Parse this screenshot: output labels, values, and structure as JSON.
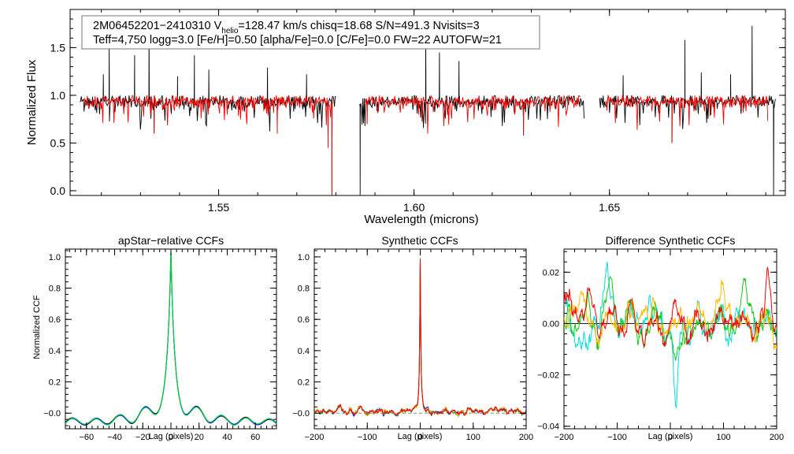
{
  "chart_data": [
    {
      "id": "spectrum",
      "type": "line",
      "xlabel": "Wavelength (microns)",
      "ylabel": "Normalized Flux",
      "xlim": [
        1.512,
        1.695
      ],
      "ylim": [
        -0.05,
        1.9
      ],
      "xticks": [
        "1.55",
        "1.60",
        "1.65"
      ],
      "xtick_values": [
        1.55,
        1.6,
        1.65
      ],
      "yticks": [
        "0.0",
        "0.5",
        "1.0",
        "1.5"
      ],
      "ytick_values": [
        0.0,
        0.5,
        1.0,
        1.5
      ],
      "annotation": {
        "line1_pre": "2M06452201−2410310  V",
        "line1_sub": "helio",
        "line1_post": "=128.47 km/s  chisq=18.68  S/N=491.3  Nvisits=3",
        "line2": "Teff=4,750 logg=3.0 [Fe/H]=0.50 [alpha/Fe]=0.0 [C/Fe]=0.0 FW=22 AUTOFW=21"
      },
      "chips": [
        [
          1.5145,
          1.58
        ],
        [
          1.586,
          1.6435
        ],
        [
          1.6475,
          1.6925
        ]
      ],
      "model_chips": [
        [
          1.5155,
          1.579
        ],
        [
          1.5875,
          1.6425
        ],
        [
          1.649,
          1.6905
        ]
      ],
      "emission_lines": [
        [
          1.5205,
          1.22
        ],
        [
          1.522,
          1.52
        ],
        [
          1.5285,
          1.42
        ],
        [
          1.5322,
          1.73
        ],
        [
          1.5395,
          1.2
        ],
        [
          1.5438,
          1.42
        ],
        [
          1.5475,
          1.27
        ],
        [
          1.5625,
          1.29
        ],
        [
          1.5725,
          1.22
        ],
        [
          1.603,
          1.63
        ],
        [
          1.6065,
          1.45
        ],
        [
          1.6115,
          1.36
        ],
        [
          1.6535,
          1.21
        ],
        [
          1.6693,
          1.58
        ],
        [
          1.6735,
          1.24
        ],
        [
          1.681,
          1.22
        ],
        [
          1.6865,
          1.73
        ]
      ],
      "absorption_lines": [
        [
          1.578,
          0.45
        ],
        [
          1.579,
          -0.05
        ],
        [
          1.5862,
          -0.05
        ],
        [
          1.588,
          0.7
        ],
        [
          1.628,
          0.58
        ],
        [
          1.5335,
          0.6
        ],
        [
          1.565,
          0.6
        ],
        [
          1.666,
          0.5
        ],
        [
          1.692,
          -0.05
        ]
      ],
      "series": [
        {
          "name": "observed",
          "color": "#000000"
        },
        {
          "name": "model",
          "color": "#ff0000"
        }
      ]
    },
    {
      "id": "apstar-ccf",
      "type": "line",
      "title": "apStar−relative CCFs",
      "xlabel": "Lag (pixels)",
      "ylabel": "Normalized CCF",
      "xlim": [
        -75,
        75
      ],
      "ylim": [
        -0.1,
        1.05
      ],
      "xticks": [
        "−60",
        "−40",
        "−20",
        "0",
        "20",
        "40",
        "60"
      ],
      "xtick_values": [
        -60,
        -40,
        -20,
        0,
        20,
        40,
        60
      ],
      "yticks": [
        "−0.0",
        "0.2",
        "0.4",
        "0.6",
        "0.8",
        "1.0"
      ],
      "ytick_values": [
        0.0,
        0.2,
        0.4,
        0.6,
        0.8,
        1.0
      ],
      "series": [
        {
          "name": "ccf-black",
          "color": "#000000"
        },
        {
          "name": "ccf-blue",
          "color": "#0000ff"
        },
        {
          "name": "ccf-green",
          "color": "#00cc44"
        }
      ]
    },
    {
      "id": "synthetic-ccf",
      "type": "line",
      "title": "Synthetic CCFs",
      "xlabel": "Lag (pixels)",
      "xlim": [
        -200,
        200
      ],
      "ylim": [
        -0.1,
        1.05
      ],
      "xticks": [
        "−200",
        "−100",
        "0",
        "100",
        "200"
      ],
      "xtick_values": [
        -200,
        -100,
        0,
        100,
        200
      ],
      "yticks": [
        "−0.0",
        "0.2",
        "0.4",
        "0.6",
        "0.8",
        "1.0"
      ],
      "ytick_values": [
        0.0,
        0.2,
        0.4,
        0.6,
        0.8,
        1.0
      ],
      "series": [
        {
          "name": "syn-blue",
          "color": "#1010e0"
        },
        {
          "name": "syn-green",
          "color": "#22aa22"
        },
        {
          "name": "syn-orange",
          "color": "#ff9900"
        },
        {
          "name": "syn-red",
          "color": "#ee0000"
        }
      ]
    },
    {
      "id": "difference-ccf",
      "type": "line",
      "title": "Difference Synthetic CCFs",
      "xlabel": "Lag (pixels)",
      "xlim": [
        -200,
        200
      ],
      "ylim": [
        -0.041,
        0.029
      ],
      "xticks": [
        "−200",
        "−100",
        "0",
        "100",
        "200"
      ],
      "xtick_values": [
        -200,
        -100,
        0,
        100,
        200
      ],
      "yticks": [
        "−0.04",
        "−0.02",
        "0.00",
        "0.02"
      ],
      "ytick_values": [
        -0.04,
        -0.02,
        0.0,
        0.02
      ],
      "series": [
        {
          "name": "diff-cyan",
          "color": "#00dddd"
        },
        {
          "name": "diff-green",
          "color": "#11cc11"
        },
        {
          "name": "diff-yellow",
          "color": "#ffbb00"
        },
        {
          "name": "diff-red",
          "color": "#ff0000"
        }
      ]
    }
  ]
}
